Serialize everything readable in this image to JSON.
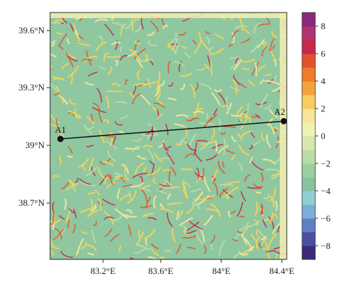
{
  "map": {
    "lat_ticks": [
      "39.6°N",
      "39.3°N",
      "39°N",
      "38.7°N"
    ],
    "lon_ticks": [
      "83.2°E",
      "83.6°E",
      "84°E",
      "84.4°E"
    ],
    "lat_range": [
      38.4,
      39.65
    ],
    "lon_range": [
      82.85,
      84.45
    ],
    "profile": {
      "start": {
        "label": "A1",
        "lat": 39.01,
        "lon": 82.92
      },
      "end": {
        "label": "A2",
        "lat": 39.1,
        "lon": 84.43
      }
    }
  },
  "colorbar": {
    "ticks": [
      "8",
      "6",
      "4",
      "2",
      "0",
      "−2",
      "−4",
      "−6",
      "−8"
    ],
    "tick_values": [
      8,
      6,
      4,
      2,
      0,
      -2,
      -4,
      -6,
      -8
    ],
    "range": [
      -9,
      9
    ],
    "colors": [
      "#3b2a7a",
      "#4a4fa0",
      "#5f7fc0",
      "#7ab0d8",
      "#8fcfcf",
      "#86c3a1",
      "#9ccfa0",
      "#b9dca8",
      "#d6e8b0",
      "#f0f0b4",
      "#f7e39a",
      "#f8cc60",
      "#f4a43a",
      "#ee7b2e",
      "#e0532c",
      "#c6284a",
      "#b13373",
      "#8a2a7e"
    ]
  }
}
